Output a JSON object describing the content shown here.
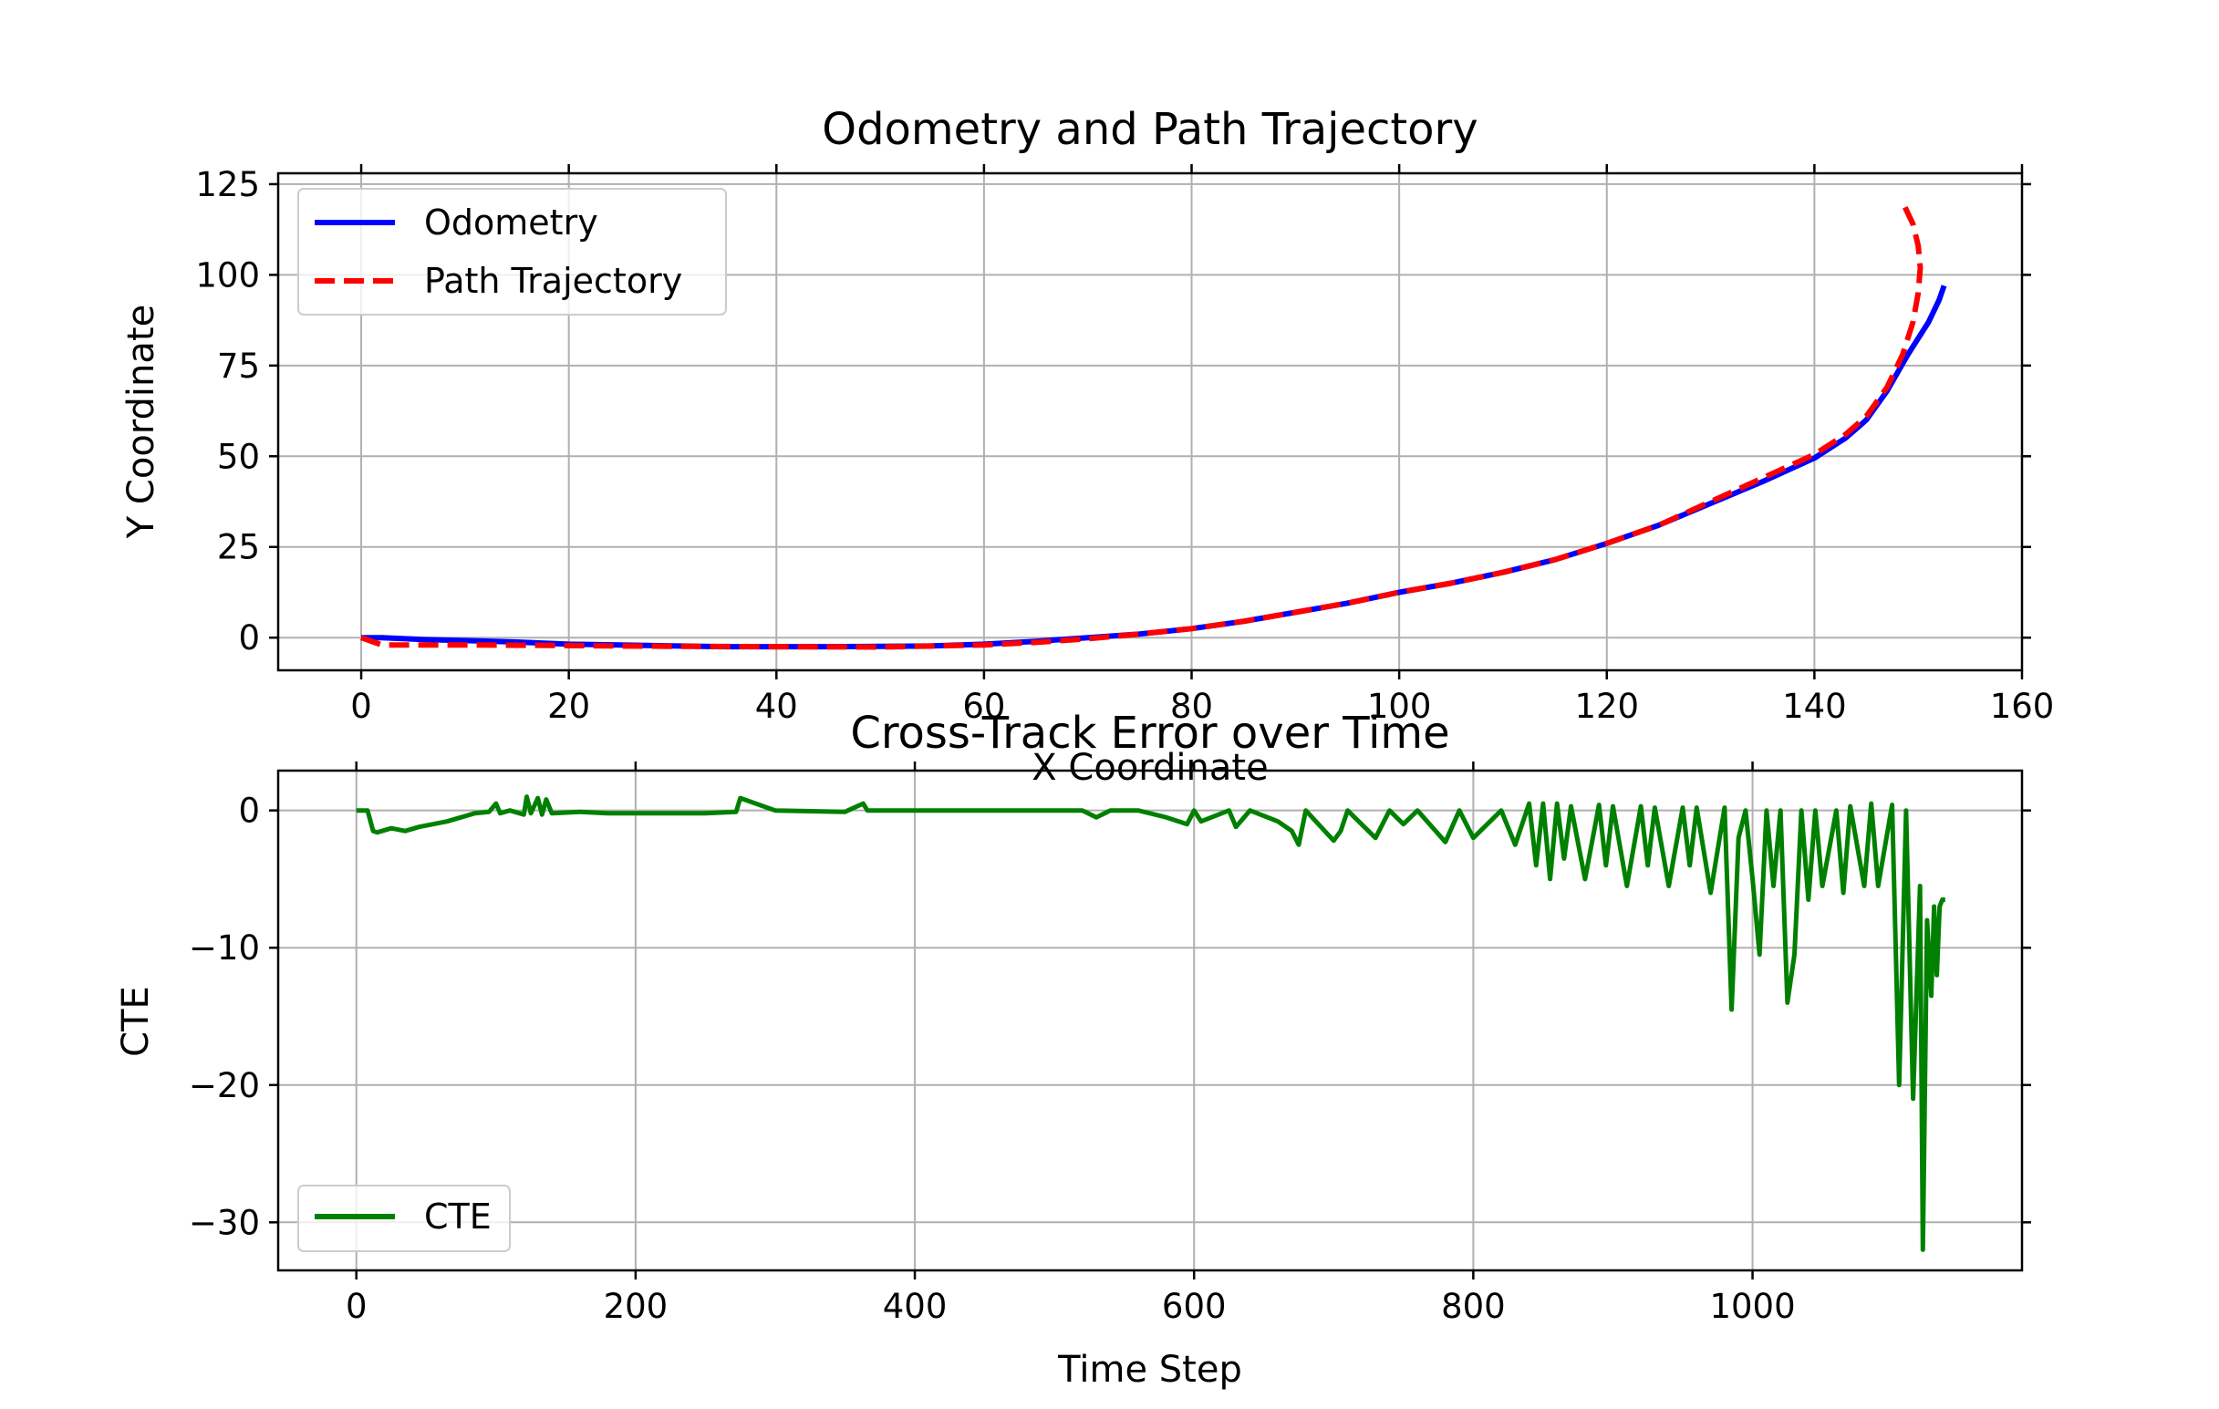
{
  "chart_data": [
    {
      "type": "line",
      "title": "Odometry and Path Trajectory",
      "xlabel": "X Coordinate",
      "ylabel": "Y Coordinate",
      "xlim": [
        -8,
        160
      ],
      "ylim": [
        -9,
        128
      ],
      "xticks": [
        0,
        20,
        40,
        60,
        80,
        100,
        120,
        140,
        160
      ],
      "yticks": [
        0,
        25,
        50,
        75,
        100,
        125
      ],
      "xtick_labels": [
        "0",
        "20",
        "40",
        "60",
        "80",
        "100",
        "120",
        "140",
        "160"
      ],
      "ytick_labels": [
        "0",
        "25",
        "50",
        "75",
        "100",
        "125"
      ],
      "grid": true,
      "legend_position": "upper-left",
      "series": [
        {
          "name": "Odometry",
          "color": "#0000ff",
          "style": "solid",
          "x": [
            0,
            2,
            6,
            10,
            15,
            20,
            25,
            30,
            35,
            40,
            45,
            50,
            55,
            60,
            65,
            70,
            75,
            80,
            85,
            90,
            95,
            100,
            105,
            110,
            115,
            120,
            125,
            130,
            135,
            140,
            143,
            145,
            147,
            149,
            151,
            152,
            152.5
          ],
          "y": [
            0,
            0,
            -0.5,
            -0.8,
            -1.2,
            -1.8,
            -2,
            -2.3,
            -2.5,
            -2.5,
            -2.5,
            -2.4,
            -2.3,
            -1.8,
            -1,
            0,
            1,
            2.5,
            4.5,
            7,
            9.5,
            12.5,
            15,
            18,
            21.5,
            26,
            31,
            37,
            43,
            49.5,
            55,
            60,
            68,
            78,
            87,
            93,
            97
          ]
        },
        {
          "name": "Path Trajectory",
          "color": "#ff0000",
          "style": "dashed",
          "x": [
            0,
            2,
            6,
            10,
            20,
            30,
            40,
            50,
            60,
            65,
            70,
            75,
            80,
            85,
            90,
            95,
            100,
            105,
            110,
            115,
            120,
            125,
            130,
            135,
            140,
            143,
            145,
            147,
            148.5,
            149.5,
            150,
            150.2,
            150,
            149.5,
            148.5
          ],
          "y": [
            0,
            -2,
            -2,
            -2,
            -2.2,
            -2.4,
            -2.5,
            -2.6,
            -2,
            -1.3,
            -0.3,
            1,
            2.5,
            4.5,
            7,
            9.5,
            12.5,
            15,
            18,
            21.5,
            26,
            31,
            37.5,
            44,
            50.5,
            56,
            61,
            69,
            78,
            87,
            95,
            102,
            108,
            114,
            120
          ]
        }
      ]
    },
    {
      "type": "line",
      "title": "Cross-Track Error over Time",
      "xlabel": "Time Step",
      "ylabel": "CTE",
      "xlim": [
        -56,
        1193
      ],
      "ylim": [
        -33.5,
        2.9
      ],
      "xticks": [
        0,
        200,
        400,
        600,
        800,
        1000
      ],
      "yticks": [
        0,
        -10,
        -20,
        -30
      ],
      "xtick_labels": [
        "0",
        "200",
        "400",
        "600",
        "800",
        "1000"
      ],
      "ytick_labels": [
        "0",
        "−10",
        "−20",
        "−30"
      ],
      "grid": true,
      "legend_position": "lower-left",
      "series": [
        {
          "name": "CTE",
          "color": "#008000",
          "style": "solid",
          "x": [
            0,
            8,
            12,
            15,
            25,
            35,
            45,
            55,
            65,
            75,
            85,
            95,
            100,
            103,
            110,
            120,
            122,
            125,
            130,
            133,
            136,
            140,
            160,
            180,
            200,
            250,
            272,
            275,
            300,
            350,
            363,
            366,
            400,
            450,
            500,
            520,
            530,
            540,
            560,
            580,
            595,
            600,
            605,
            625,
            630,
            640,
            660,
            670,
            675,
            680,
            700,
            705,
            710,
            730,
            740,
            750,
            760,
            780,
            790,
            800,
            820,
            830,
            840,
            845,
            850,
            855,
            860,
            865,
            870,
            880,
            890,
            895,
            900,
            910,
            920,
            925,
            930,
            940,
            950,
            955,
            960,
            970,
            980,
            985,
            990,
            995,
            1000,
            1005,
            1010,
            1015,
            1020,
            1025,
            1030,
            1035,
            1040,
            1045,
            1050,
            1060,
            1065,
            1070,
            1080,
            1085,
            1090,
            1100,
            1105,
            1110,
            1115,
            1120,
            1122,
            1125,
            1128,
            1130,
            1132,
            1134,
            1136,
            1138
          ],
          "y": [
            0,
            0,
            -1.5,
            -1.6,
            -1.3,
            -1.5,
            -1.2,
            -1.0,
            -0.8,
            -0.5,
            -0.2,
            -0.1,
            0.5,
            -0.2,
            0,
            -0.3,
            1.0,
            -0.2,
            0.9,
            -0.3,
            0.8,
            -0.2,
            -0.1,
            -0.2,
            -0.2,
            -0.2,
            -0.1,
            0.9,
            0,
            -0.1,
            0.5,
            0,
            0,
            0,
            0,
            0,
            -0.5,
            0,
            0,
            -0.5,
            -1.0,
            0,
            -0.8,
            0,
            -1.2,
            0,
            -0.8,
            -1.5,
            -2.5,
            0,
            -2.2,
            -1.5,
            0,
            -2.0,
            0,
            -1.0,
            0,
            -2.3,
            0,
            -2.0,
            0,
            -2.5,
            0.5,
            -4.0,
            0.5,
            -5.0,
            0.5,
            -3.5,
            0.3,
            -5.0,
            0.4,
            -4.0,
            0.3,
            -5.5,
            0.3,
            -4.0,
            0.2,
            -5.5,
            0.2,
            -4.0,
            0.2,
            -6.0,
            0.2,
            -14.5,
            -2.0,
            0,
            -5.0,
            -10.5,
            0,
            -5.5,
            0,
            -14.0,
            -10.5,
            0,
            -6.5,
            0,
            -5.5,
            0,
            -6.0,
            0.3,
            -5.5,
            0.5,
            -5.5,
            0.4,
            -20.0,
            0,
            -21.0,
            -5.5,
            -32.0,
            -8.0,
            -13.5,
            -7.0,
            -12.0,
            -7.0,
            -6.5,
            -6.5
          ]
        }
      ]
    }
  ]
}
